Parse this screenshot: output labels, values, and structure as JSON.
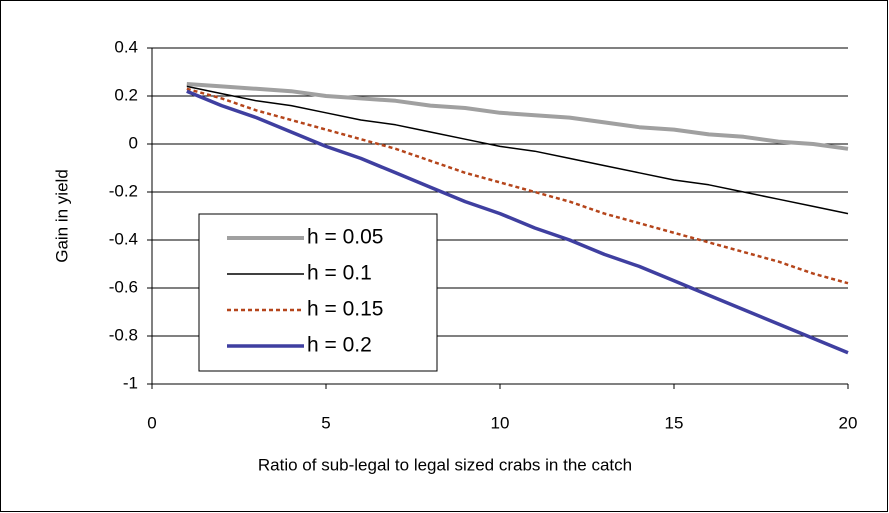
{
  "chart_data": {
    "type": "line",
    "xlabel": "Ratio of  sub-legal to legal sized crabs in the catch",
    "ylabel": "Gain in yield",
    "x": [
      1,
      2,
      3,
      4,
      5,
      6,
      7,
      8,
      9,
      10,
      11,
      12,
      13,
      14,
      15,
      16,
      17,
      18,
      19,
      20
    ],
    "series": [
      {
        "name": "h = 0.05",
        "color": "#a0a0a0",
        "values": [
          0.25,
          0.24,
          0.23,
          0.22,
          0.2,
          0.19,
          0.18,
          0.16,
          0.15,
          0.13,
          0.12,
          0.11,
          0.09,
          0.07,
          0.06,
          0.04,
          0.03,
          0.01,
          0.0,
          -0.02
        ]
      },
      {
        "name": "h = 0.1",
        "color": "#000000",
        "values": [
          0.24,
          0.21,
          0.18,
          0.16,
          0.13,
          0.1,
          0.08,
          0.05,
          0.02,
          -0.01,
          -0.03,
          -0.06,
          -0.09,
          -0.12,
          -0.15,
          -0.17,
          -0.2,
          -0.23,
          -0.26,
          -0.29
        ]
      },
      {
        "name": "h = 0.15",
        "color": "#b5451b",
        "values": [
          0.23,
          0.19,
          0.14,
          0.1,
          0.06,
          0.02,
          -0.02,
          -0.07,
          -0.12,
          -0.16,
          -0.2,
          -0.24,
          -0.29,
          -0.33,
          -0.37,
          -0.41,
          -0.45,
          -0.49,
          -0.54,
          -0.58
        ]
      },
      {
        "name": "h = 0.2",
        "color": "#3f3fa0",
        "values": [
          0.22,
          0.16,
          0.11,
          0.05,
          -0.01,
          -0.06,
          -0.12,
          -0.18,
          -0.24,
          -0.29,
          -0.35,
          -0.4,
          -0.46,
          -0.51,
          -0.57,
          -0.63,
          -0.69,
          -0.75,
          -0.81,
          -0.87
        ]
      }
    ],
    "xlim": [
      0,
      20
    ],
    "xticks": [
      0,
      5,
      10,
      15,
      20
    ],
    "ylim": [
      -1,
      0.4
    ],
    "yticks": [
      -1,
      -0.8,
      -0.6,
      -0.4,
      -0.2,
      0,
      0.2,
      0.4
    ],
    "grid": true
  }
}
